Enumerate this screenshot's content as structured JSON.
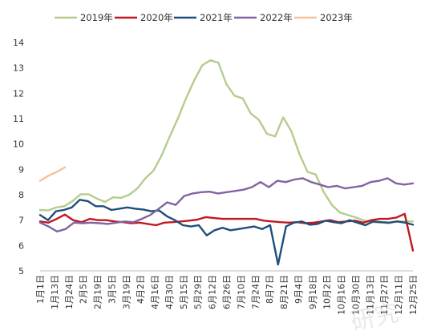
{
  "chart_data": {
    "type": "line",
    "title": "",
    "xlabel": "",
    "ylabel": "",
    "ylim": [
      5,
      14
    ],
    "yticks": [
      5,
      6,
      7,
      8,
      9,
      10,
      11,
      12,
      13,
      14
    ],
    "grid": false,
    "legend_position": "top",
    "x_labels": [
      "1月1日",
      "1月13日",
      "1月24日",
      "2月5日",
      "2月19日",
      "3月5日",
      "3月19日",
      "4月2日",
      "4月16日",
      "4月30日",
      "5月15日",
      "5月29日",
      "6月12日",
      "6月26日",
      "7月10日",
      "7月24日",
      "8月7日",
      "8月21日",
      "9月4日",
      "9月18日",
      "10月2日",
      "10月16日",
      "10月30日",
      "11月13日",
      "11月27日",
      "12月11日",
      "12月25日"
    ],
    "series": [
      {
        "name": "2019年",
        "color": "#b5cc8e",
        "values": [
          7.4,
          7.38,
          7.5,
          7.55,
          7.75,
          8.02,
          8.02,
          7.85,
          7.72,
          7.9,
          7.88,
          8.0,
          8.25,
          8.65,
          8.95,
          9.55,
          10.3,
          11.0,
          11.8,
          12.5,
          13.1,
          13.3,
          13.2,
          12.35,
          11.9,
          11.8,
          11.2,
          10.95,
          10.4,
          10.3,
          11.05,
          10.5,
          9.6,
          8.9,
          8.8,
          8.1,
          7.6,
          7.3,
          7.2,
          7.1,
          6.98,
          6.92,
          6.9,
          6.88,
          6.95,
          6.95,
          6.95
        ]
      },
      {
        "name": "2020年",
        "color": "#c0181f",
        "values": [
          6.95,
          6.9,
          7.05,
          7.22,
          7.0,
          6.92,
          7.05,
          7.0,
          7.0,
          6.95,
          6.92,
          6.88,
          6.9,
          6.85,
          6.8,
          6.9,
          6.92,
          6.95,
          6.98,
          7.02,
          7.12,
          7.08,
          7.05,
          7.05,
          7.05,
          7.05,
          7.05,
          6.98,
          6.95,
          6.92,
          6.9,
          6.92,
          6.88,
          6.9,
          6.95,
          7.0,
          6.92,
          6.95,
          6.98,
          6.9,
          7.0,
          7.05,
          7.05,
          7.1,
          7.25,
          5.8
        ]
      },
      {
        "name": "2021年",
        "color": "#1f4e79",
        "values": [
          7.2,
          7.0,
          7.35,
          7.4,
          7.5,
          7.8,
          7.75,
          7.55,
          7.55,
          7.4,
          7.45,
          7.5,
          7.45,
          7.42,
          7.35,
          7.38,
          7.15,
          7.0,
          6.8,
          6.75,
          6.8,
          6.4,
          6.6,
          6.7,
          6.6,
          6.65,
          6.7,
          6.75,
          6.65,
          6.8,
          5.25,
          6.75,
          6.9,
          6.95,
          6.82,
          6.85,
          6.98,
          6.92,
          6.88,
          7.0,
          6.9,
          6.8,
          6.95,
          6.92,
          6.9,
          6.95,
          6.9,
          6.82
        ]
      },
      {
        "name": "2022年",
        "color": "#8064a2",
        "values": [
          6.9,
          6.75,
          6.55,
          6.65,
          6.9,
          6.88,
          6.9,
          6.88,
          6.85,
          6.9,
          6.95,
          6.92,
          7.05,
          7.2,
          7.45,
          7.7,
          7.6,
          7.95,
          8.05,
          8.1,
          8.12,
          8.05,
          8.1,
          8.15,
          8.2,
          8.3,
          8.5,
          8.3,
          8.55,
          8.5,
          8.6,
          8.65,
          8.5,
          8.4,
          8.3,
          8.35,
          8.25,
          8.3,
          8.35,
          8.5,
          8.55,
          8.65,
          8.45,
          8.4,
          8.45
        ]
      },
      {
        "name": "2023年",
        "color": "#f5c19a",
        "values": [
          8.55,
          8.75,
          8.9,
          9.08
        ]
      }
    ]
  },
  "watermark": "研究"
}
